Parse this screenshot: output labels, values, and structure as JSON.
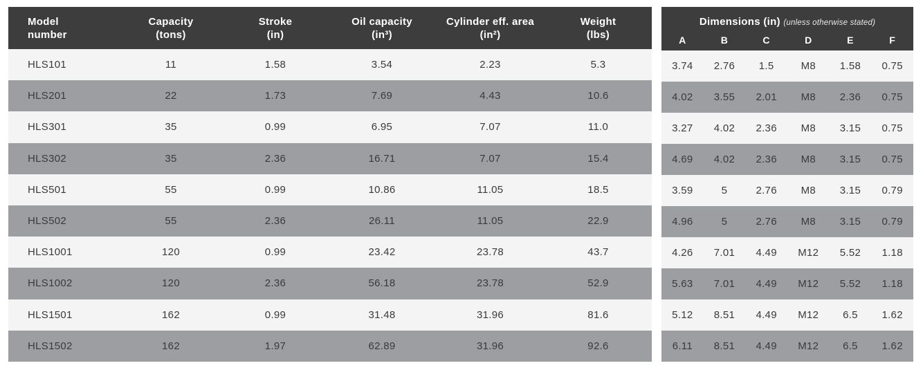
{
  "spec_table": {
    "headers": [
      {
        "line1": "Model",
        "line2": "number"
      },
      {
        "line1": "Capacity",
        "line2": "(tons)"
      },
      {
        "line1": "Stroke",
        "line2": "(in)"
      },
      {
        "line1": "Oil capacity",
        "line2": "(in³)"
      },
      {
        "line1": "Cylinder eff. area",
        "line2": "(in²)"
      },
      {
        "line1": "Weight",
        "line2": "(lbs)"
      }
    ],
    "rows": [
      [
        "HLS101",
        "11",
        "1.58",
        "3.54",
        "2.23",
        "5.3"
      ],
      [
        "HLS201",
        "22",
        "1.73",
        "7.69",
        "4.43",
        "10.6"
      ],
      [
        "HLS301",
        "35",
        "0.99",
        "6.95",
        "7.07",
        "11.0"
      ],
      [
        "HLS302",
        "35",
        "2.36",
        "16.71",
        "7.07",
        "15.4"
      ],
      [
        "HLS501",
        "55",
        "0.99",
        "10.86",
        "11.05",
        "18.5"
      ],
      [
        "HLS502",
        "55",
        "2.36",
        "26.11",
        "11.05",
        "22.9"
      ],
      [
        "HLS1001",
        "120",
        "0.99",
        "23.42",
        "23.78",
        "43.7"
      ],
      [
        "HLS1002",
        "120",
        "2.36",
        "56.18",
        "23.78",
        "52.9"
      ],
      [
        "HLS1501",
        "162",
        "0.99",
        "31.48",
        "31.96",
        "81.6"
      ],
      [
        "HLS1502",
        "162",
        "1.97",
        "62.89",
        "31.96",
        "92.6"
      ]
    ]
  },
  "dimensions_table": {
    "title": "Dimensions (in)",
    "title_note": "(unless otherwise stated)",
    "columns": [
      "A",
      "B",
      "C",
      "D",
      "E",
      "F"
    ],
    "rows": [
      [
        "3.74",
        "2.76",
        "1.5",
        "M8",
        "1.58",
        "0.75"
      ],
      [
        "4.02",
        "3.55",
        "2.01",
        "M8",
        "2.36",
        "0.75"
      ],
      [
        "3.27",
        "4.02",
        "2.36",
        "M8",
        "3.15",
        "0.75"
      ],
      [
        "4.69",
        "4.02",
        "2.36",
        "M8",
        "3.15",
        "0.75"
      ],
      [
        "3.59",
        "5",
        "2.76",
        "M8",
        "3.15",
        "0.79"
      ],
      [
        "4.96",
        "5",
        "2.76",
        "M8",
        "3.15",
        "0.79"
      ],
      [
        "4.26",
        "7.01",
        "4.49",
        "M12",
        "5.52",
        "1.18"
      ],
      [
        "5.63",
        "7.01",
        "4.49",
        "M12",
        "5.52",
        "1.18"
      ],
      [
        "5.12",
        "8.51",
        "4.49",
        "M12",
        "6.5",
        "1.62"
      ],
      [
        "6.11",
        "8.51",
        "4.49",
        "M12",
        "6.5",
        "1.62"
      ]
    ]
  },
  "colors": {
    "header_bg": "#3d3d3d",
    "row_light": "#f4f4f5",
    "row_gray": "#9c9ea1",
    "header_text": "#ffffff",
    "body_text": "#3a3a3a"
  }
}
